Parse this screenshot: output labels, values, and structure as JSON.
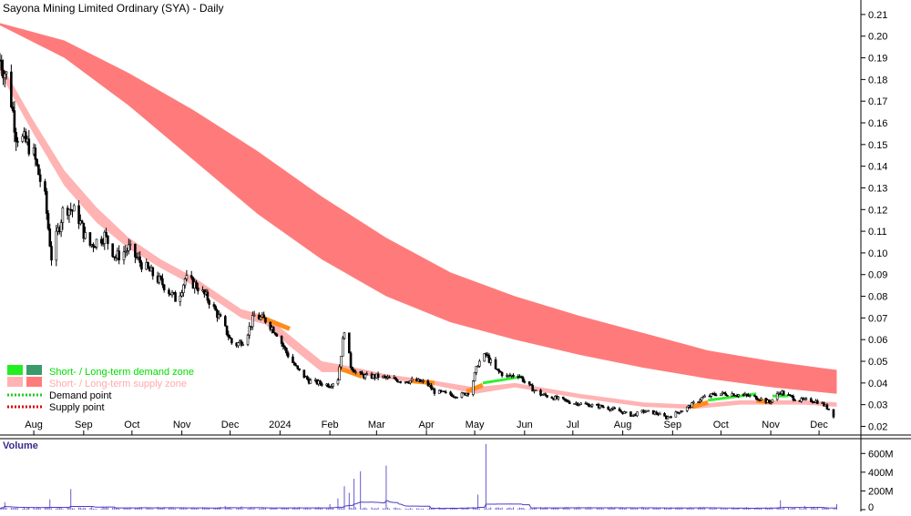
{
  "chart_data": {
    "type": "candlestick",
    "title": "Sayona Mining Limited Ordinary (SYA) - Daily",
    "y_ticks": [
      "0.21",
      "0.20",
      "0.19",
      "0.18",
      "0.17",
      "0.16",
      "0.15",
      "0.14",
      "0.13",
      "0.12",
      "0.11",
      "0.10",
      "0.09",
      "0.08",
      "0.07",
      "0.06",
      "0.05",
      "0.04",
      "0.03",
      "0.02"
    ],
    "ylim": [
      0.016,
      0.215
    ],
    "x_ticks": [
      {
        "label": "Aug",
        "day": 21
      },
      {
        "label": "Sep",
        "day": 52
      },
      {
        "label": "Oct",
        "day": 82
      },
      {
        "label": "Nov",
        "day": 113
      },
      {
        "label": "Dec",
        "day": 143
      },
      {
        "label": "2024",
        "day": 174
      },
      {
        "label": "Feb",
        "day": 205
      },
      {
        "label": "Mar",
        "day": 234
      },
      {
        "label": "Apr",
        "day": 265
      },
      {
        "label": "May",
        "day": 295
      },
      {
        "label": "Jun",
        "day": 326
      },
      {
        "label": "Jul",
        "day": 356
      },
      {
        "label": "Aug",
        "day": 387
      },
      {
        "label": "Sep",
        "day": 418
      },
      {
        "label": "Oct",
        "day": 448
      },
      {
        "label": "Nov",
        "day": 479
      },
      {
        "label": "Dec",
        "day": 509
      }
    ],
    "xlim": [
      0,
      535
    ],
    "price_path": [
      [
        0,
        0.189
      ],
      [
        5,
        0.18
      ],
      [
        10,
        0.155
      ],
      [
        20,
        0.148
      ],
      [
        28,
        0.125
      ],
      [
        32,
        0.098
      ],
      [
        40,
        0.122
      ],
      [
        48,
        0.118
      ],
      [
        55,
        0.103
      ],
      [
        65,
        0.108
      ],
      [
        72,
        0.098
      ],
      [
        80,
        0.102
      ],
      [
        88,
        0.095
      ],
      [
        95,
        0.09
      ],
      [
        102,
        0.085
      ],
      [
        110,
        0.078
      ],
      [
        115,
        0.088
      ],
      [
        122,
        0.085
      ],
      [
        130,
        0.078
      ],
      [
        138,
        0.068
      ],
      [
        145,
        0.057
      ],
      [
        152,
        0.06
      ],
      [
        158,
        0.071
      ],
      [
        165,
        0.069
      ],
      [
        172,
        0.063
      ],
      [
        178,
        0.054
      ],
      [
        185,
        0.046
      ],
      [
        192,
        0.041
      ],
      [
        198,
        0.04
      ],
      [
        205,
        0.039
      ],
      [
        210,
        0.042
      ],
      [
        214,
        0.065
      ],
      [
        218,
        0.048
      ],
      [
        222,
        0.044
      ],
      [
        228,
        0.043
      ],
      [
        235,
        0.043
      ],
      [
        242,
        0.042
      ],
      [
        250,
        0.041
      ],
      [
        258,
        0.041
      ],
      [
        265,
        0.04
      ],
      [
        270,
        0.036
      ],
      [
        278,
        0.035
      ],
      [
        285,
        0.034
      ],
      [
        292,
        0.036
      ],
      [
        297,
        0.049
      ],
      [
        302,
        0.053
      ],
      [
        308,
        0.046
      ],
      [
        315,
        0.043
      ],
      [
        322,
        0.044
      ],
      [
        328,
        0.039
      ],
      [
        335,
        0.035
      ],
      [
        345,
        0.033
      ],
      [
        355,
        0.031
      ],
      [
        365,
        0.03
      ],
      [
        375,
        0.029
      ],
      [
        385,
        0.027
      ],
      [
        393,
        0.025
      ],
      [
        400,
        0.027
      ],
      [
        408,
        0.026
      ],
      [
        414,
        0.024
      ],
      [
        420,
        0.026
      ],
      [
        428,
        0.029
      ],
      [
        436,
        0.033
      ],
      [
        445,
        0.035
      ],
      [
        455,
        0.035
      ],
      [
        465,
        0.034
      ],
      [
        472,
        0.033
      ],
      [
        478,
        0.031
      ],
      [
        485,
        0.036
      ],
      [
        490,
        0.034
      ],
      [
        497,
        0.032
      ],
      [
        505,
        0.032
      ],
      [
        510,
        0.031
      ],
      [
        515,
        0.028
      ],
      [
        518,
        0.025
      ]
    ],
    "volume": {
      "label": "Volume",
      "y_ticks": [
        "600M",
        "400M",
        "200M",
        "0"
      ],
      "ylim": [
        0,
        700
      ],
      "baseline_volume": 18,
      "spikes": [
        {
          "day": 3,
          "value": 80
        },
        {
          "day": 31,
          "value": 110
        },
        {
          "day": 44,
          "value": 220
        },
        {
          "day": 140,
          "value": 40
        },
        {
          "day": 150,
          "value": 35
        },
        {
          "day": 205,
          "value": 60
        },
        {
          "day": 210,
          "value": 120
        },
        {
          "day": 214,
          "value": 250
        },
        {
          "day": 217,
          "value": 180
        },
        {
          "day": 220,
          "value": 330
        },
        {
          "day": 224,
          "value": 410
        },
        {
          "day": 230,
          "value": 140
        },
        {
          "day": 240,
          "value": 470
        },
        {
          "day": 297,
          "value": 160
        },
        {
          "day": 302,
          "value": 700
        },
        {
          "day": 306,
          "value": 110
        },
        {
          "day": 432,
          "value": 120
        },
        {
          "day": 440,
          "value": 40
        },
        {
          "day": 485,
          "value": 100
        },
        {
          "day": 500,
          "value": 40
        },
        {
          "day": 520,
          "value": 60
        }
      ]
    },
    "bands": {
      "long_term_supply": {
        "color": "#ff7b7b",
        "upper": [
          [
            0,
            0.206
          ],
          [
            40,
            0.198
          ],
          [
            80,
            0.183
          ],
          [
            120,
            0.166
          ],
          [
            160,
            0.147
          ],
          [
            200,
            0.126
          ],
          [
            240,
            0.107
          ],
          [
            280,
            0.091
          ],
          [
            320,
            0.08
          ],
          [
            360,
            0.071
          ],
          [
            400,
            0.063
          ],
          [
            440,
            0.055
          ],
          [
            480,
            0.05
          ],
          [
            520,
            0.046
          ]
        ],
        "lower": [
          [
            0,
            0.205
          ],
          [
            40,
            0.19
          ],
          [
            80,
            0.168
          ],
          [
            120,
            0.143
          ],
          [
            160,
            0.118
          ],
          [
            200,
            0.097
          ],
          [
            240,
            0.08
          ],
          [
            280,
            0.068
          ],
          [
            320,
            0.06
          ],
          [
            360,
            0.053
          ],
          [
            400,
            0.047
          ],
          [
            440,
            0.042
          ],
          [
            480,
            0.038
          ],
          [
            520,
            0.035
          ]
        ]
      },
      "short_term_supply": {
        "color": "#ffb3b3",
        "upper": [
          [
            0,
            0.188
          ],
          [
            20,
            0.162
          ],
          [
            40,
            0.138
          ],
          [
            60,
            0.121
          ],
          [
            80,
            0.107
          ],
          [
            100,
            0.097
          ],
          [
            120,
            0.089
          ],
          [
            140,
            0.079
          ],
          [
            150,
            0.074
          ],
          [
            165,
            0.071
          ],
          [
            180,
            0.062
          ],
          [
            200,
            0.05
          ],
          [
            215,
            0.048
          ],
          [
            240,
            0.044
          ],
          [
            270,
            0.041
          ],
          [
            295,
            0.038
          ],
          [
            320,
            0.04
          ],
          [
            360,
            0.035
          ],
          [
            400,
            0.031
          ],
          [
            430,
            0.03
          ],
          [
            460,
            0.032
          ],
          [
            500,
            0.032
          ],
          [
            520,
            0.031
          ]
        ],
        "lower": [
          [
            0,
            0.183
          ],
          [
            20,
            0.156
          ],
          [
            40,
            0.131
          ],
          [
            60,
            0.114
          ],
          [
            80,
            0.102
          ],
          [
            100,
            0.093
          ],
          [
            120,
            0.085
          ],
          [
            140,
            0.075
          ],
          [
            150,
            0.07
          ],
          [
            165,
            0.067
          ],
          [
            180,
            0.057
          ],
          [
            200,
            0.045
          ],
          [
            215,
            0.045
          ],
          [
            240,
            0.042
          ],
          [
            270,
            0.039
          ],
          [
            295,
            0.035
          ],
          [
            320,
            0.038
          ],
          [
            360,
            0.033
          ],
          [
            400,
            0.029
          ],
          [
            430,
            0.028
          ],
          [
            460,
            0.03
          ],
          [
            500,
            0.03
          ],
          [
            520,
            0.029
          ]
        ]
      },
      "transition_color": "#ff8c1a",
      "demand_color": "#33ee33",
      "transition_segments": [
        [
          160,
          0.071,
          180,
          0.065
        ],
        [
          210,
          0.047,
          225,
          0.043
        ],
        [
          255,
          0.041,
          270,
          0.04
        ],
        [
          290,
          0.036,
          300,
          0.039
        ],
        [
          430,
          0.029,
          440,
          0.031
        ],
        [
          470,
          0.032,
          480,
          0.031
        ]
      ],
      "demand_segments": [
        [
          300,
          0.04,
          325,
          0.043
        ],
        [
          440,
          0.032,
          470,
          0.035
        ],
        [
          480,
          0.034,
          490,
          0.034
        ]
      ]
    },
    "legend": [
      {
        "label": "Short- / Long-term demand zone",
        "swatches": [
          "#22ee22",
          "#3a9a6a"
        ],
        "text_color": "#00dd00"
      },
      {
        "label": "Short- / Long-term supply zone",
        "swatches": [
          "#ffb3b3",
          "#ff7b7b"
        ],
        "text_color": "#ffaaaa"
      },
      {
        "label": "Demand point",
        "style": "dotted",
        "color": "#22cc22",
        "text_color": "#000000"
      },
      {
        "label": "Supply point",
        "style": "dotted",
        "color": "#dd0000",
        "text_color": "#000000"
      }
    ]
  }
}
